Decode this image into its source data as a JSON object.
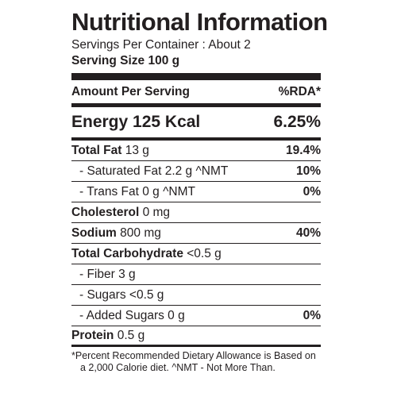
{
  "label": {
    "title": "Nutritional Information",
    "servings_per_container": "Servings Per Container : About 2",
    "serving_size": "Serving Size 100 g",
    "header_left": "Amount Per Serving",
    "header_right": "%RDA*",
    "energy": {
      "name": "Energy 125 Kcal",
      "pct": "6.25%"
    },
    "rows": [
      {
        "name": "Total Fat",
        "amount": " 13 g",
        "pct": "19.4%"
      },
      {
        "name": "- Saturated Fat",
        "amount": " 2.2 g ^NMT",
        "pct": "10%"
      },
      {
        "name": "- Trans Fat",
        "amount": " 0 g ^NMT",
        "pct": "0%"
      },
      {
        "name": "Cholesterol",
        "amount": " 0 mg",
        "pct": ""
      },
      {
        "name": "Sodium",
        "amount": " 800 mg",
        "pct": "40%"
      },
      {
        "name": "Total Carbohydrate",
        "amount": " <0.5 g",
        "pct": ""
      },
      {
        "name": "- Fiber",
        "amount": " 3 g",
        "pct": ""
      },
      {
        "name": "- Sugars",
        "amount": " <0.5 g",
        "pct": ""
      },
      {
        "name": "- Added Sugars",
        "amount": " 0 g",
        "pct": "0%"
      },
      {
        "name": "Protein",
        "amount": " 0.5 g",
        "pct": ""
      }
    ],
    "footnote_line1": "*Percent Recommended Dietary Allowance is Based on",
    "footnote_line2": "a 2,000 Calorie diet. ^NMT - Not More Than."
  }
}
